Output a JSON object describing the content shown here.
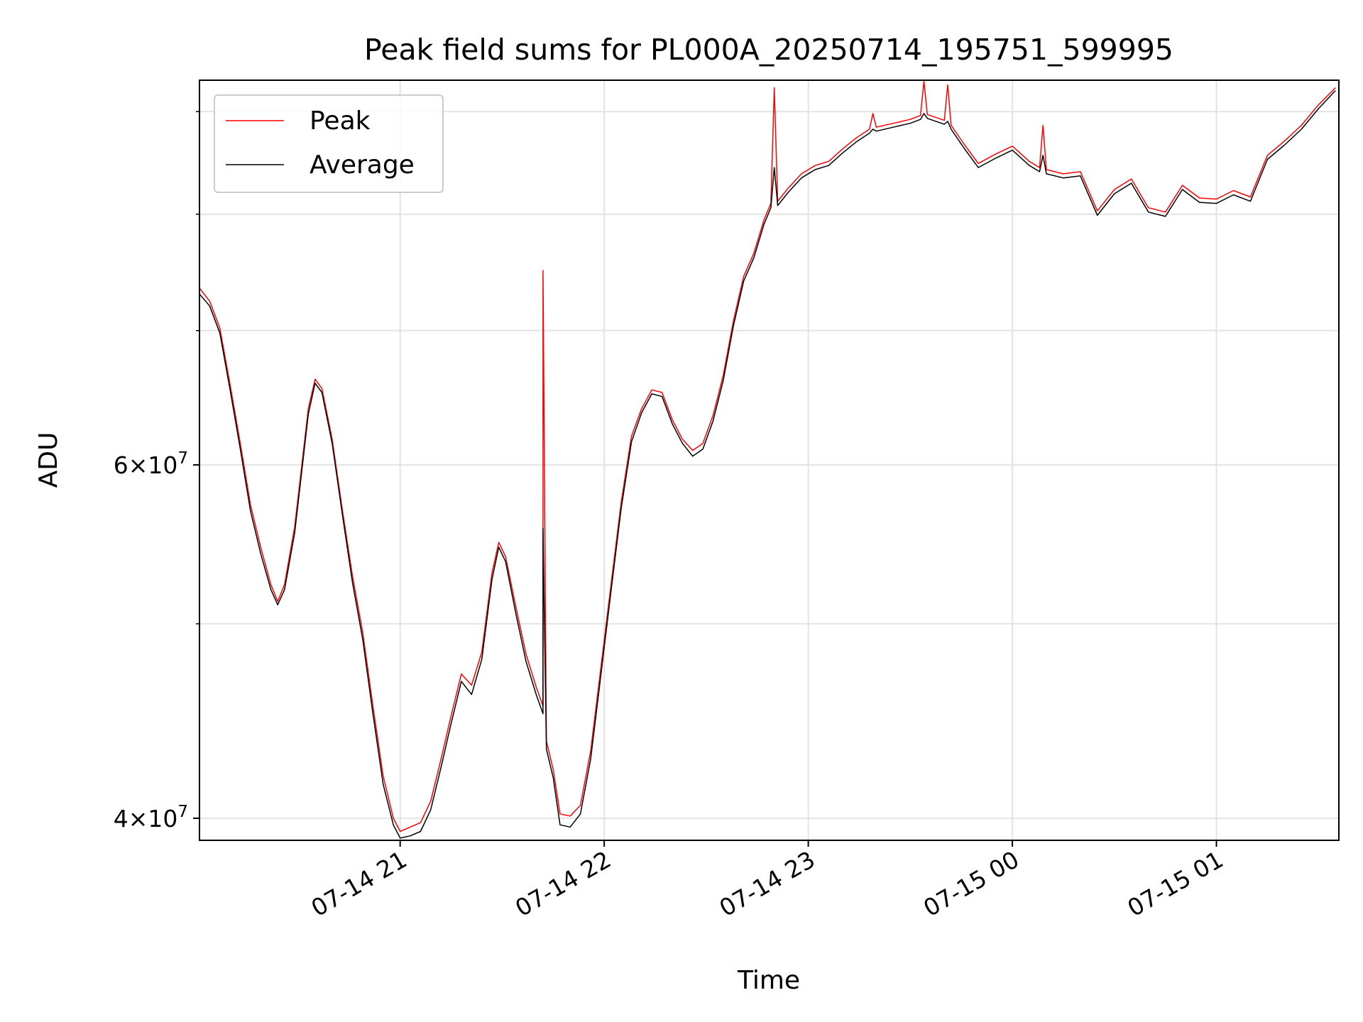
{
  "chart_data": {
    "type": "line",
    "title": "Peak field sums for PL000A_20250714_195751_599995",
    "xlabel": "Time",
    "ylabel": "ADU",
    "yscale": "log",
    "grid": true,
    "legend_position": "top-left",
    "x_tick_labels": [
      "07-14 21",
      "07-14 22",
      "07-14 23",
      "07-15 00",
      "07-15 01"
    ],
    "x_ticks": [
      "2025-07-14T21:00",
      "2025-07-14T22:00",
      "2025-07-14T23:00",
      "2025-07-15T00:00",
      "2025-07-15T01:00"
    ],
    "xlim": [
      "2025-07-14T20:01",
      "2025-07-15T01:36"
    ],
    "y_tick_labels": [
      {
        "value": 40000000,
        "mantissa": "4",
        "base": "10",
        "exp": "7"
      },
      {
        "value": 60000000,
        "mantissa": "6",
        "base": "10",
        "exp": "7"
      }
    ],
    "y_minor_ticks": [
      50000000,
      70000000,
      80000000,
      90000000
    ],
    "ylim": [
      39000000,
      93300000
    ],
    "series": [
      {
        "name": "Peak",
        "color": "#ff0000",
        "points": [
          [
            "2025-07-14T20:01",
            73500000
          ],
          [
            "2025-07-14T20:04",
            72400000
          ],
          [
            "2025-07-14T20:07",
            70200000
          ],
          [
            "2025-07-14T20:10",
            65800000
          ],
          [
            "2025-07-14T20:13",
            61500000
          ],
          [
            "2025-07-14T20:16",
            57300000
          ],
          [
            "2025-07-14T20:19",
            54600000
          ],
          [
            "2025-07-14T20:22",
            52300000
          ],
          [
            "2025-07-14T20:24",
            51300000
          ],
          [
            "2025-07-14T20:26",
            52300000
          ],
          [
            "2025-07-14T20:29",
            55900000
          ],
          [
            "2025-07-14T20:31",
            59800000
          ],
          [
            "2025-07-14T20:33",
            64000000
          ],
          [
            "2025-07-14T20:35",
            66200000
          ],
          [
            "2025-07-14T20:37",
            65500000
          ],
          [
            "2025-07-14T20:40",
            61800000
          ],
          [
            "2025-07-14T20:43",
            57000000
          ],
          [
            "2025-07-14T20:46",
            52800000
          ],
          [
            "2025-07-14T20:49",
            49500000
          ],
          [
            "2025-07-14T20:52",
            45500000
          ],
          [
            "2025-07-14T20:55",
            42000000
          ],
          [
            "2025-07-14T20:58",
            40000000
          ],
          [
            "2025-07-14T21:00",
            39400000
          ],
          [
            "2025-07-14T21:03",
            39600000
          ],
          [
            "2025-07-14T21:06",
            39800000
          ],
          [
            "2025-07-14T21:09",
            40800000
          ],
          [
            "2025-07-14T21:12",
            42800000
          ],
          [
            "2025-07-14T21:15",
            45000000
          ],
          [
            "2025-07-14T21:18",
            47200000
          ],
          [
            "2025-07-14T21:21",
            46600000
          ],
          [
            "2025-07-14T21:24",
            48400000
          ],
          [
            "2025-07-14T21:27",
            53000000
          ],
          [
            "2025-07-14T21:29",
            54900000
          ],
          [
            "2025-07-14T21:31",
            54000000
          ],
          [
            "2025-07-14T21:34",
            51000000
          ],
          [
            "2025-07-14T21:37",
            48300000
          ],
          [
            "2025-07-14T21:40",
            46500000
          ],
          [
            "2025-07-14T21:42",
            45500000
          ],
          [
            "2025-07-14T21:42",
            75000000
          ],
          [
            "2025-07-14T21:43",
            43700000
          ],
          [
            "2025-07-14T21:45",
            42300000
          ],
          [
            "2025-07-14T21:47",
            40200000
          ],
          [
            "2025-07-14T21:50",
            40100000
          ],
          [
            "2025-07-14T21:53",
            40600000
          ],
          [
            "2025-07-14T21:56",
            43200000
          ],
          [
            "2025-07-14T21:59",
            47500000
          ],
          [
            "2025-07-14T22:02",
            52300000
          ],
          [
            "2025-07-14T22:05",
            57500000
          ],
          [
            "2025-07-14T22:08",
            62000000
          ],
          [
            "2025-07-14T22:11",
            64000000
          ],
          [
            "2025-07-14T22:14",
            65400000
          ],
          [
            "2025-07-14T22:17",
            65200000
          ],
          [
            "2025-07-14T22:20",
            63200000
          ],
          [
            "2025-07-14T22:23",
            61800000
          ],
          [
            "2025-07-14T22:26",
            61000000
          ],
          [
            "2025-07-14T22:29",
            61500000
          ],
          [
            "2025-07-14T22:32",
            63500000
          ],
          [
            "2025-07-14T22:35",
            66500000
          ],
          [
            "2025-07-14T22:38",
            70800000
          ],
          [
            "2025-07-14T22:41",
            74500000
          ],
          [
            "2025-07-14T22:44",
            76500000
          ],
          [
            "2025-07-14T22:47",
            79500000
          ],
          [
            "2025-07-14T22:49",
            81000000
          ],
          [
            "2025-07-14T22:50",
            92500000
          ],
          [
            "2025-07-14T22:51",
            81200000
          ],
          [
            "2025-07-14T22:54",
            82400000
          ],
          [
            "2025-07-14T22:58",
            83800000
          ],
          [
            "2025-07-14T23:02",
            84600000
          ],
          [
            "2025-07-14T23:06",
            85000000
          ],
          [
            "2025-07-14T23:10",
            86200000
          ],
          [
            "2025-07-14T23:14",
            87300000
          ],
          [
            "2025-07-14T23:18",
            88200000
          ],
          [
            "2025-07-14T23:19",
            89800000
          ],
          [
            "2025-07-14T23:20",
            88400000
          ],
          [
            "2025-07-14T23:25",
            88800000
          ],
          [
            "2025-07-14T23:30",
            89200000
          ],
          [
            "2025-07-14T23:33",
            89600000
          ],
          [
            "2025-07-14T23:34",
            93200000
          ],
          [
            "2025-07-14T23:35",
            89700000
          ],
          [
            "2025-07-14T23:40",
            89100000
          ],
          [
            "2025-07-14T23:41",
            92800000
          ],
          [
            "2025-07-14T23:42",
            88600000
          ],
          [
            "2025-07-14T23:46",
            86600000
          ],
          [
            "2025-07-14T23:50",
            84800000
          ],
          [
            "2025-07-14T23:55",
            85700000
          ],
          [
            "2025-07-15T00:00",
            86500000
          ],
          [
            "2025-07-15T00:05",
            85000000
          ],
          [
            "2025-07-15T00:08",
            84400000
          ],
          [
            "2025-07-15T00:09",
            88600000
          ],
          [
            "2025-07-15T00:10",
            84200000
          ],
          [
            "2025-07-15T00:15",
            83800000
          ],
          [
            "2025-07-15T00:20",
            84000000
          ],
          [
            "2025-07-15T00:25",
            80300000
          ],
          [
            "2025-07-15T00:30",
            82300000
          ],
          [
            "2025-07-15T00:35",
            83300000
          ],
          [
            "2025-07-15T00:40",
            80600000
          ],
          [
            "2025-07-15T00:45",
            80200000
          ],
          [
            "2025-07-15T00:50",
            82700000
          ],
          [
            "2025-07-15T00:55",
            81500000
          ],
          [
            "2025-07-15T01:00",
            81400000
          ],
          [
            "2025-07-15T01:05",
            82200000
          ],
          [
            "2025-07-15T01:10",
            81600000
          ],
          [
            "2025-07-15T01:15",
            85600000
          ],
          [
            "2025-07-15T01:20",
            87000000
          ],
          [
            "2025-07-15T01:25",
            88600000
          ],
          [
            "2025-07-15T01:30",
            90700000
          ],
          [
            "2025-07-15T01:35",
            92500000
          ]
        ]
      },
      {
        "name": "Average",
        "color": "#000000",
        "points": [
          [
            "2025-07-14T20:01",
            73000000
          ],
          [
            "2025-07-14T20:04",
            72000000
          ],
          [
            "2025-07-14T20:07",
            69800000
          ],
          [
            "2025-07-14T20:10",
            65400000
          ],
          [
            "2025-07-14T20:13",
            61100000
          ],
          [
            "2025-07-14T20:16",
            56900000
          ],
          [
            "2025-07-14T20:19",
            54200000
          ],
          [
            "2025-07-14T20:22",
            52000000
          ],
          [
            "2025-07-14T20:24",
            51100000
          ],
          [
            "2025-07-14T20:26",
            52000000
          ],
          [
            "2025-07-14T20:29",
            55500000
          ],
          [
            "2025-07-14T20:31",
            59400000
          ],
          [
            "2025-07-14T20:33",
            63600000
          ],
          [
            "2025-07-14T20:35",
            65900000
          ],
          [
            "2025-07-14T20:37",
            65200000
          ],
          [
            "2025-07-14T20:40",
            61500000
          ],
          [
            "2025-07-14T20:43",
            56700000
          ],
          [
            "2025-07-14T20:46",
            52400000
          ],
          [
            "2025-07-14T20:49",
            49100000
          ],
          [
            "2025-07-14T20:52",
            45100000
          ],
          [
            "2025-07-14T20:55",
            41600000
          ],
          [
            "2025-07-14T20:58",
            39700000
          ],
          [
            "2025-07-14T21:00",
            39100000
          ],
          [
            "2025-07-14T21:03",
            39200000
          ],
          [
            "2025-07-14T21:06",
            39400000
          ],
          [
            "2025-07-14T21:09",
            40400000
          ],
          [
            "2025-07-14T21:12",
            42400000
          ],
          [
            "2025-07-14T21:15",
            44600000
          ],
          [
            "2025-07-14T21:18",
            46800000
          ],
          [
            "2025-07-14T21:21",
            46100000
          ],
          [
            "2025-07-14T21:24",
            48000000
          ],
          [
            "2025-07-14T21:27",
            52600000
          ],
          [
            "2025-07-14T21:29",
            54600000
          ],
          [
            "2025-07-14T21:31",
            53700000
          ],
          [
            "2025-07-14T21:34",
            50600000
          ],
          [
            "2025-07-14T21:37",
            47900000
          ],
          [
            "2025-07-14T21:40",
            46100000
          ],
          [
            "2025-07-14T21:42",
            45100000
          ],
          [
            "2025-07-14T21:42",
            55800000
          ],
          [
            "2025-07-14T21:43",
            43300000
          ],
          [
            "2025-07-14T21:45",
            41900000
          ],
          [
            "2025-07-14T21:47",
            39700000
          ],
          [
            "2025-07-14T21:50",
            39600000
          ],
          [
            "2025-07-14T21:53",
            40200000
          ],
          [
            "2025-07-14T21:56",
            42800000
          ],
          [
            "2025-07-14T21:59",
            47100000
          ],
          [
            "2025-07-14T22:02",
            51900000
          ],
          [
            "2025-07-14T22:05",
            57100000
          ],
          [
            "2025-07-14T22:08",
            61600000
          ],
          [
            "2025-07-14T22:11",
            63700000
          ],
          [
            "2025-07-14T22:14",
            65100000
          ],
          [
            "2025-07-14T22:17",
            64900000
          ],
          [
            "2025-07-14T22:20",
            62900000
          ],
          [
            "2025-07-14T22:23",
            61500000
          ],
          [
            "2025-07-14T22:26",
            60600000
          ],
          [
            "2025-07-14T22:29",
            61100000
          ],
          [
            "2025-07-14T22:32",
            63100000
          ],
          [
            "2025-07-14T22:35",
            66100000
          ],
          [
            "2025-07-14T22:38",
            70400000
          ],
          [
            "2025-07-14T22:41",
            74100000
          ],
          [
            "2025-07-14T22:44",
            76100000
          ],
          [
            "2025-07-14T22:47",
            79100000
          ],
          [
            "2025-07-14T22:49",
            80600000
          ],
          [
            "2025-07-14T22:50",
            84400000
          ],
          [
            "2025-07-14T22:51",
            80800000
          ],
          [
            "2025-07-14T22:54",
            82000000
          ],
          [
            "2025-07-14T22:58",
            83400000
          ],
          [
            "2025-07-14T23:02",
            84200000
          ],
          [
            "2025-07-14T23:06",
            84600000
          ],
          [
            "2025-07-14T23:10",
            85800000
          ],
          [
            "2025-07-14T23:14",
            86900000
          ],
          [
            "2025-07-14T23:18",
            87800000
          ],
          [
            "2025-07-14T23:19",
            88200000
          ],
          [
            "2025-07-14T23:20",
            88000000
          ],
          [
            "2025-07-14T23:25",
            88400000
          ],
          [
            "2025-07-14T23:30",
            88800000
          ],
          [
            "2025-07-14T23:33",
            89200000
          ],
          [
            "2025-07-14T23:34",
            89800000
          ],
          [
            "2025-07-14T23:35",
            89300000
          ],
          [
            "2025-07-14T23:40",
            88700000
          ],
          [
            "2025-07-14T23:41",
            89000000
          ],
          [
            "2025-07-14T23:42",
            88200000
          ],
          [
            "2025-07-14T23:46",
            86200000
          ],
          [
            "2025-07-14T23:50",
            84400000
          ],
          [
            "2025-07-14T23:55",
            85300000
          ],
          [
            "2025-07-15T00:00",
            86100000
          ],
          [
            "2025-07-15T00:05",
            84600000
          ],
          [
            "2025-07-15T00:08",
            84000000
          ],
          [
            "2025-07-15T00:09",
            85600000
          ],
          [
            "2025-07-15T00:10",
            83800000
          ],
          [
            "2025-07-15T00:15",
            83400000
          ],
          [
            "2025-07-15T00:20",
            83600000
          ],
          [
            "2025-07-15T00:25",
            79900000
          ],
          [
            "2025-07-15T00:30",
            81900000
          ],
          [
            "2025-07-15T00:35",
            82900000
          ],
          [
            "2025-07-15T00:40",
            80200000
          ],
          [
            "2025-07-15T00:45",
            79800000
          ],
          [
            "2025-07-15T00:50",
            82300000
          ],
          [
            "2025-07-15T00:55",
            81100000
          ],
          [
            "2025-07-15T01:00",
            81000000
          ],
          [
            "2025-07-15T01:05",
            81800000
          ],
          [
            "2025-07-15T01:10",
            81200000
          ],
          [
            "2025-07-15T01:15",
            85200000
          ],
          [
            "2025-07-15T01:20",
            86600000
          ],
          [
            "2025-07-15T01:25",
            88200000
          ],
          [
            "2025-07-15T01:30",
            90300000
          ],
          [
            "2025-07-15T01:35",
            92200000
          ]
        ]
      }
    ]
  }
}
